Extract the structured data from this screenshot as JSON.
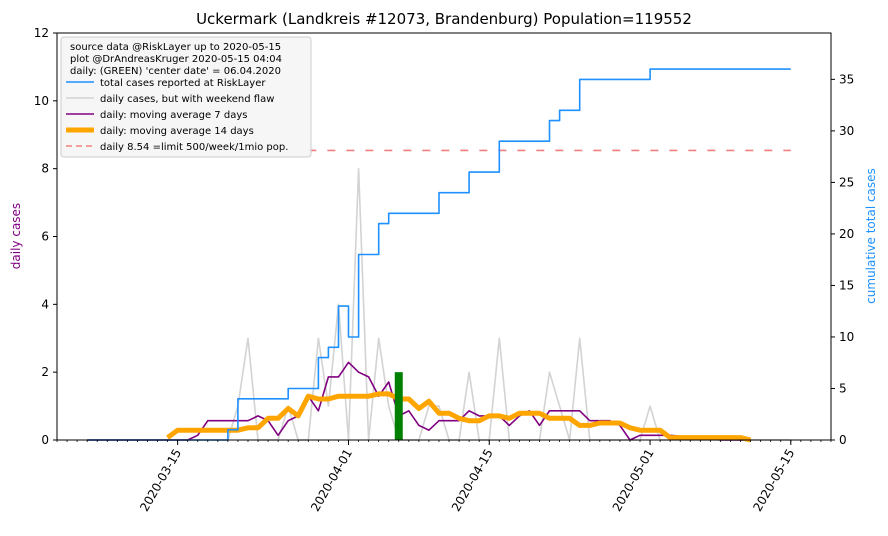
{
  "chart_data": {
    "type": "line",
    "title": "Uckermark (Landkreis #12073, Brandenburg) Population=119552",
    "ylabel_left": "daily cases",
    "ylabel_right": "cumulative total cases",
    "left_axis": {
      "ylim": [
        0,
        12
      ],
      "ticks": [
        0,
        2,
        4,
        6,
        8,
        10,
        12
      ],
      "color": "#800080"
    },
    "right_axis": {
      "ylim": [
        0,
        39.5
      ],
      "ticks": [
        0,
        5,
        10,
        15,
        20,
        25,
        30,
        35
      ],
      "color": "#1e90ff"
    },
    "x_axis": {
      "type": "date",
      "range": [
        "2020-03-03",
        "2020-05-19"
      ],
      "tick_labels": [
        "2020-03-15",
        "2020-04-01",
        "2020-04-15",
        "2020-05-01",
        "2020-05-15"
      ]
    },
    "legend": {
      "position": "top-left",
      "header": [
        "source data @RiskLayer up to 2020-05-15",
        "plot @DrAndreasKruger 2020-05-15 04:04",
        "daily: (GREEN) 'center date' = 06.04.2020"
      ]
    },
    "series": [
      {
        "name": "total cases reported at RiskLayer",
        "axis": "right",
        "color": "#1e90ff",
        "style": "solid",
        "step": true,
        "points": [
          [
            "2020-03-06",
            0
          ],
          [
            "2020-03-19",
            0
          ],
          [
            "2020-03-20",
            1
          ],
          [
            "2020-03-21",
            4
          ],
          [
            "2020-03-25",
            4
          ],
          [
            "2020-03-26",
            5
          ],
          [
            "2020-03-28",
            5
          ],
          [
            "2020-03-29",
            8
          ],
          [
            "2020-03-30",
            9
          ],
          [
            "2020-03-31",
            13
          ],
          [
            "2020-04-01",
            10
          ],
          [
            "2020-04-02",
            18
          ],
          [
            "2020-04-03",
            18
          ],
          [
            "2020-04-04",
            21
          ],
          [
            "2020-04-05",
            22
          ],
          [
            "2020-04-08",
            22
          ],
          [
            "2020-04-10",
            24
          ],
          [
            "2020-04-12",
            24
          ],
          [
            "2020-04-13",
            26
          ],
          [
            "2020-04-15",
            26
          ],
          [
            "2020-04-16",
            29
          ],
          [
            "2020-04-20",
            29
          ],
          [
            "2020-04-21",
            31
          ],
          [
            "2020-04-22",
            32
          ],
          [
            "2020-04-23",
            32
          ],
          [
            "2020-04-24",
            35
          ],
          [
            "2020-04-30",
            35
          ],
          [
            "2020-05-01",
            36
          ],
          [
            "2020-05-15",
            36
          ]
        ]
      },
      {
        "name": "daily cases, but with weekend flaw",
        "axis": "left",
        "color": "#d3d3d3",
        "style": "solid",
        "points": [
          [
            "2020-03-06",
            0
          ],
          [
            "2020-03-18",
            0
          ],
          [
            "2020-03-19",
            0
          ],
          [
            "2020-03-20",
            0
          ],
          [
            "2020-03-21",
            1
          ],
          [
            "2020-03-22",
            3
          ],
          [
            "2020-03-23",
            0
          ],
          [
            "2020-03-24",
            0
          ],
          [
            "2020-03-25",
            0
          ],
          [
            "2020-03-26",
            1
          ],
          [
            "2020-03-27",
            0
          ],
          [
            "2020-03-28",
            0
          ],
          [
            "2020-03-29",
            3
          ],
          [
            "2020-03-30",
            1
          ],
          [
            "2020-03-31",
            4
          ],
          [
            "2020-04-01",
            0
          ],
          [
            "2020-04-02",
            8
          ],
          [
            "2020-04-03",
            0
          ],
          [
            "2020-04-04",
            3
          ],
          [
            "2020-04-05",
            1
          ],
          [
            "2020-04-06",
            0
          ],
          [
            "2020-04-07",
            0
          ],
          [
            "2020-04-08",
            0
          ],
          [
            "2020-04-09",
            1
          ],
          [
            "2020-04-10",
            1
          ],
          [
            "2020-04-11",
            0
          ],
          [
            "2020-04-12",
            0
          ],
          [
            "2020-04-13",
            2
          ],
          [
            "2020-04-14",
            0
          ],
          [
            "2020-04-15",
            0
          ],
          [
            "2020-04-16",
            3
          ],
          [
            "2020-04-17",
            0
          ],
          [
            "2020-04-18",
            0
          ],
          [
            "2020-04-19",
            0
          ],
          [
            "2020-04-20",
            0
          ],
          [
            "2020-04-21",
            2
          ],
          [
            "2020-04-22",
            1
          ],
          [
            "2020-04-23",
            0
          ],
          [
            "2020-04-24",
            3
          ],
          [
            "2020-04-25",
            0
          ],
          [
            "2020-04-26",
            0
          ],
          [
            "2020-04-27",
            0
          ],
          [
            "2020-04-28",
            0
          ],
          [
            "2020-04-29",
            0
          ],
          [
            "2020-04-30",
            0
          ],
          [
            "2020-05-01",
            1
          ],
          [
            "2020-05-02",
            0
          ],
          [
            "2020-05-15",
            0
          ]
        ]
      },
      {
        "name": "daily: moving average 7 days",
        "axis": "left",
        "color": "#800080",
        "style": "solid",
        "points": [
          [
            "2020-03-06",
            0
          ],
          [
            "2020-03-16",
            0
          ],
          [
            "2020-03-17",
            0.14
          ],
          [
            "2020-03-18",
            0.57
          ],
          [
            "2020-03-20",
            0.57
          ],
          [
            "2020-03-21",
            0.57
          ],
          [
            "2020-03-22",
            0.57
          ],
          [
            "2020-03-23",
            0.71
          ],
          [
            "2020-03-24",
            0.57
          ],
          [
            "2020-03-25",
            0.14
          ],
          [
            "2020-03-26",
            0.57
          ],
          [
            "2020-03-27",
            0.71
          ],
          [
            "2020-03-28",
            1.29
          ],
          [
            "2020-03-29",
            0.86
          ],
          [
            "2020-03-30",
            1.86
          ],
          [
            "2020-03-31",
            1.86
          ],
          [
            "2020-04-01",
            2.29
          ],
          [
            "2020-04-02",
            2.0
          ],
          [
            "2020-04-03",
            1.86
          ],
          [
            "2020-04-04",
            1.29
          ],
          [
            "2020-04-05",
            1.71
          ],
          [
            "2020-04-06",
            0.71
          ],
          [
            "2020-04-07",
            0.86
          ],
          [
            "2020-04-08",
            0.43
          ],
          [
            "2020-04-09",
            0.29
          ],
          [
            "2020-04-10",
            0.57
          ],
          [
            "2020-04-11",
            0.57
          ],
          [
            "2020-04-12",
            0.57
          ],
          [
            "2020-04-13",
            0.86
          ],
          [
            "2020-04-14",
            0.71
          ],
          [
            "2020-04-15",
            0.71
          ],
          [
            "2020-04-16",
            0.71
          ],
          [
            "2020-04-17",
            0.43
          ],
          [
            "2020-04-18",
            0.71
          ],
          [
            "2020-04-19",
            0.86
          ],
          [
            "2020-04-20",
            0.43
          ],
          [
            "2020-04-21",
            0.86
          ],
          [
            "2020-04-22",
            0.86
          ],
          [
            "2020-04-23",
            0.86
          ],
          [
            "2020-04-24",
            0.86
          ],
          [
            "2020-04-25",
            0.57
          ],
          [
            "2020-04-26",
            0.57
          ],
          [
            "2020-04-27",
            0.57
          ],
          [
            "2020-04-28",
            0.43
          ],
          [
            "2020-04-29",
            0.0
          ],
          [
            "2020-04-30",
            0.14
          ],
          [
            "2020-05-02",
            0.14
          ],
          [
            "2020-05-03",
            0.14
          ],
          [
            "2020-05-08",
            0.0
          ],
          [
            "2020-05-11",
            0
          ]
        ]
      },
      {
        "name": "daily: moving average 14 days",
        "axis": "left",
        "color": "#ffa500",
        "style": "thick",
        "points": [
          [
            "2020-03-14",
            0.07
          ],
          [
            "2020-03-15",
            0.29
          ],
          [
            "2020-03-21",
            0.29
          ],
          [
            "2020-03-22",
            0.36
          ],
          [
            "2020-03-23",
            0.36
          ],
          [
            "2020-03-24",
            0.64
          ],
          [
            "2020-03-25",
            0.64
          ],
          [
            "2020-03-26",
            0.93
          ],
          [
            "2020-03-27",
            0.71
          ],
          [
            "2020-03-28",
            1.29
          ],
          [
            "2020-03-29",
            1.21
          ],
          [
            "2020-03-30",
            1.21
          ],
          [
            "2020-03-31",
            1.29
          ],
          [
            "2020-04-01",
            1.29
          ],
          [
            "2020-04-02",
            1.29
          ],
          [
            "2020-04-03",
            1.29
          ],
          [
            "2020-04-04",
            1.36
          ],
          [
            "2020-04-05",
            1.36
          ],
          [
            "2020-04-06",
            1.21
          ],
          [
            "2020-04-07",
            1.21
          ],
          [
            "2020-04-08",
            0.93
          ],
          [
            "2020-04-09",
            1.14
          ],
          [
            "2020-04-10",
            0.79
          ],
          [
            "2020-04-11",
            0.79
          ],
          [
            "2020-04-12",
            0.64
          ],
          [
            "2020-04-13",
            0.57
          ],
          [
            "2020-04-14",
            0.57
          ],
          [
            "2020-04-15",
            0.71
          ],
          [
            "2020-04-16",
            0.71
          ],
          [
            "2020-04-17",
            0.64
          ],
          [
            "2020-04-18",
            0.79
          ],
          [
            "2020-04-19",
            0.79
          ],
          [
            "2020-04-20",
            0.79
          ],
          [
            "2020-04-21",
            0.64
          ],
          [
            "2020-04-22",
            0.64
          ],
          [
            "2020-04-23",
            0.64
          ],
          [
            "2020-04-24",
            0.43
          ],
          [
            "2020-04-25",
            0.43
          ],
          [
            "2020-04-26",
            0.5
          ],
          [
            "2020-04-27",
            0.5
          ],
          [
            "2020-04-28",
            0.5
          ],
          [
            "2020-04-29",
            0.36
          ],
          [
            "2020-04-30",
            0.29
          ],
          [
            "2020-05-01",
            0.29
          ],
          [
            "2020-05-02",
            0.29
          ],
          [
            "2020-05-03",
            0.07
          ],
          [
            "2020-05-07",
            0.07
          ],
          [
            "2020-05-10",
            0.07
          ],
          [
            "2020-05-11",
            0.0
          ]
        ]
      },
      {
        "name": "daily 8.54 =limit 500/week/1mio pop.",
        "axis": "left",
        "color": "#f08080",
        "style": "dashed",
        "points": [
          [
            "2020-03-28",
            8.54
          ],
          [
            "2020-05-15",
            8.54
          ]
        ]
      }
    ],
    "center_marker": {
      "date": "2020-04-06",
      "value": 2,
      "color": "#008000",
      "axis": "left"
    }
  }
}
